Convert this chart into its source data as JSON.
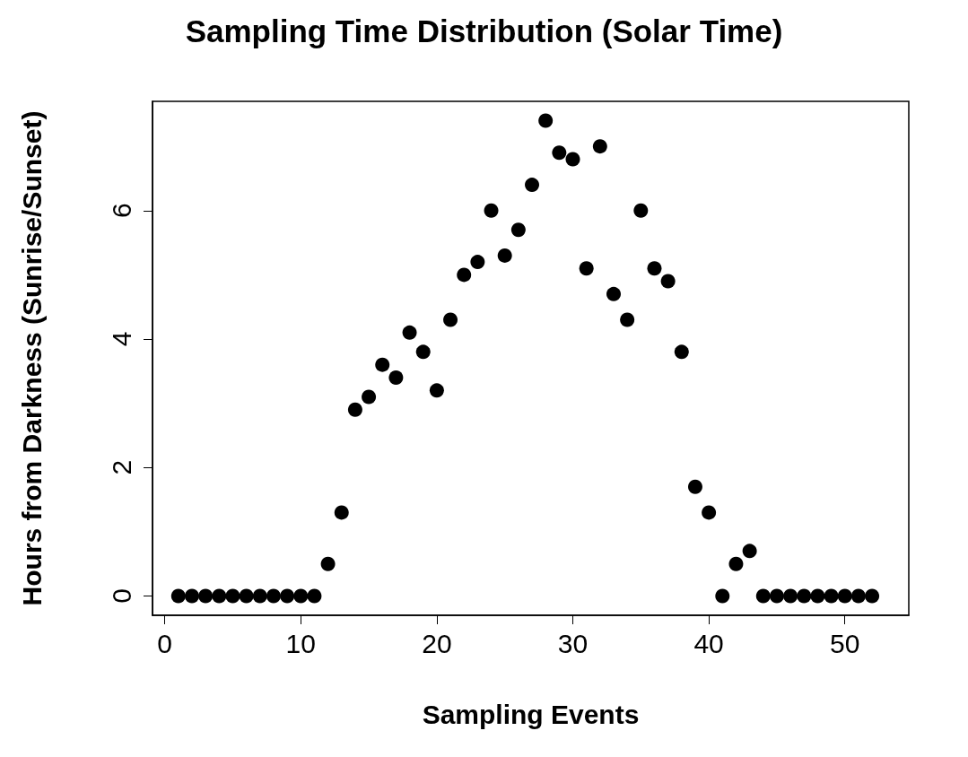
{
  "chart_data": {
    "type": "scatter",
    "title": "Sampling Time Distribution (Solar Time)",
    "xlabel": "Sampling Events",
    "ylabel": "Hours from Darkness (Sunrise/Sunset)",
    "x": [
      1,
      2,
      3,
      4,
      5,
      6,
      7,
      8,
      9,
      10,
      11,
      12,
      13,
      14,
      15,
      16,
      17,
      18,
      19,
      20,
      21,
      22,
      23,
      24,
      25,
      26,
      27,
      28,
      29,
      30,
      31,
      32,
      33,
      34,
      35,
      36,
      37,
      38,
      39,
      40,
      41,
      42,
      43,
      44,
      45,
      46,
      47,
      48,
      49,
      50,
      51,
      52
    ],
    "series": [
      {
        "color": "#000000",
        "values": [
          0,
          0,
          0,
          0,
          0,
          0,
          0,
          0,
          0,
          0,
          0,
          0.5,
          1.3,
          2.9,
          3.1,
          3.6,
          3.4,
          4.1,
          3.8,
          3.2,
          4.3,
          5.0,
          5.2,
          6.0,
          5.3,
          5.7,
          6.4,
          7.4,
          6.9,
          6.8,
          5.1,
          7.0,
          4.7,
          4.3,
          6.0,
          5.1,
          4.9,
          3.8,
          1.7,
          1.3,
          0,
          0.5,
          0.7,
          0,
          0,
          0,
          0,
          0,
          0,
          0,
          0,
          0
        ]
      }
    ],
    "xlim": [
      -0.9,
      54.7
    ],
    "ylim": [
      -0.3,
      7.7
    ],
    "xticks": [
      0,
      10,
      20,
      30,
      40,
      50
    ],
    "yticks": [
      0,
      2,
      4,
      6
    ],
    "marker": "circle",
    "grid": false
  }
}
